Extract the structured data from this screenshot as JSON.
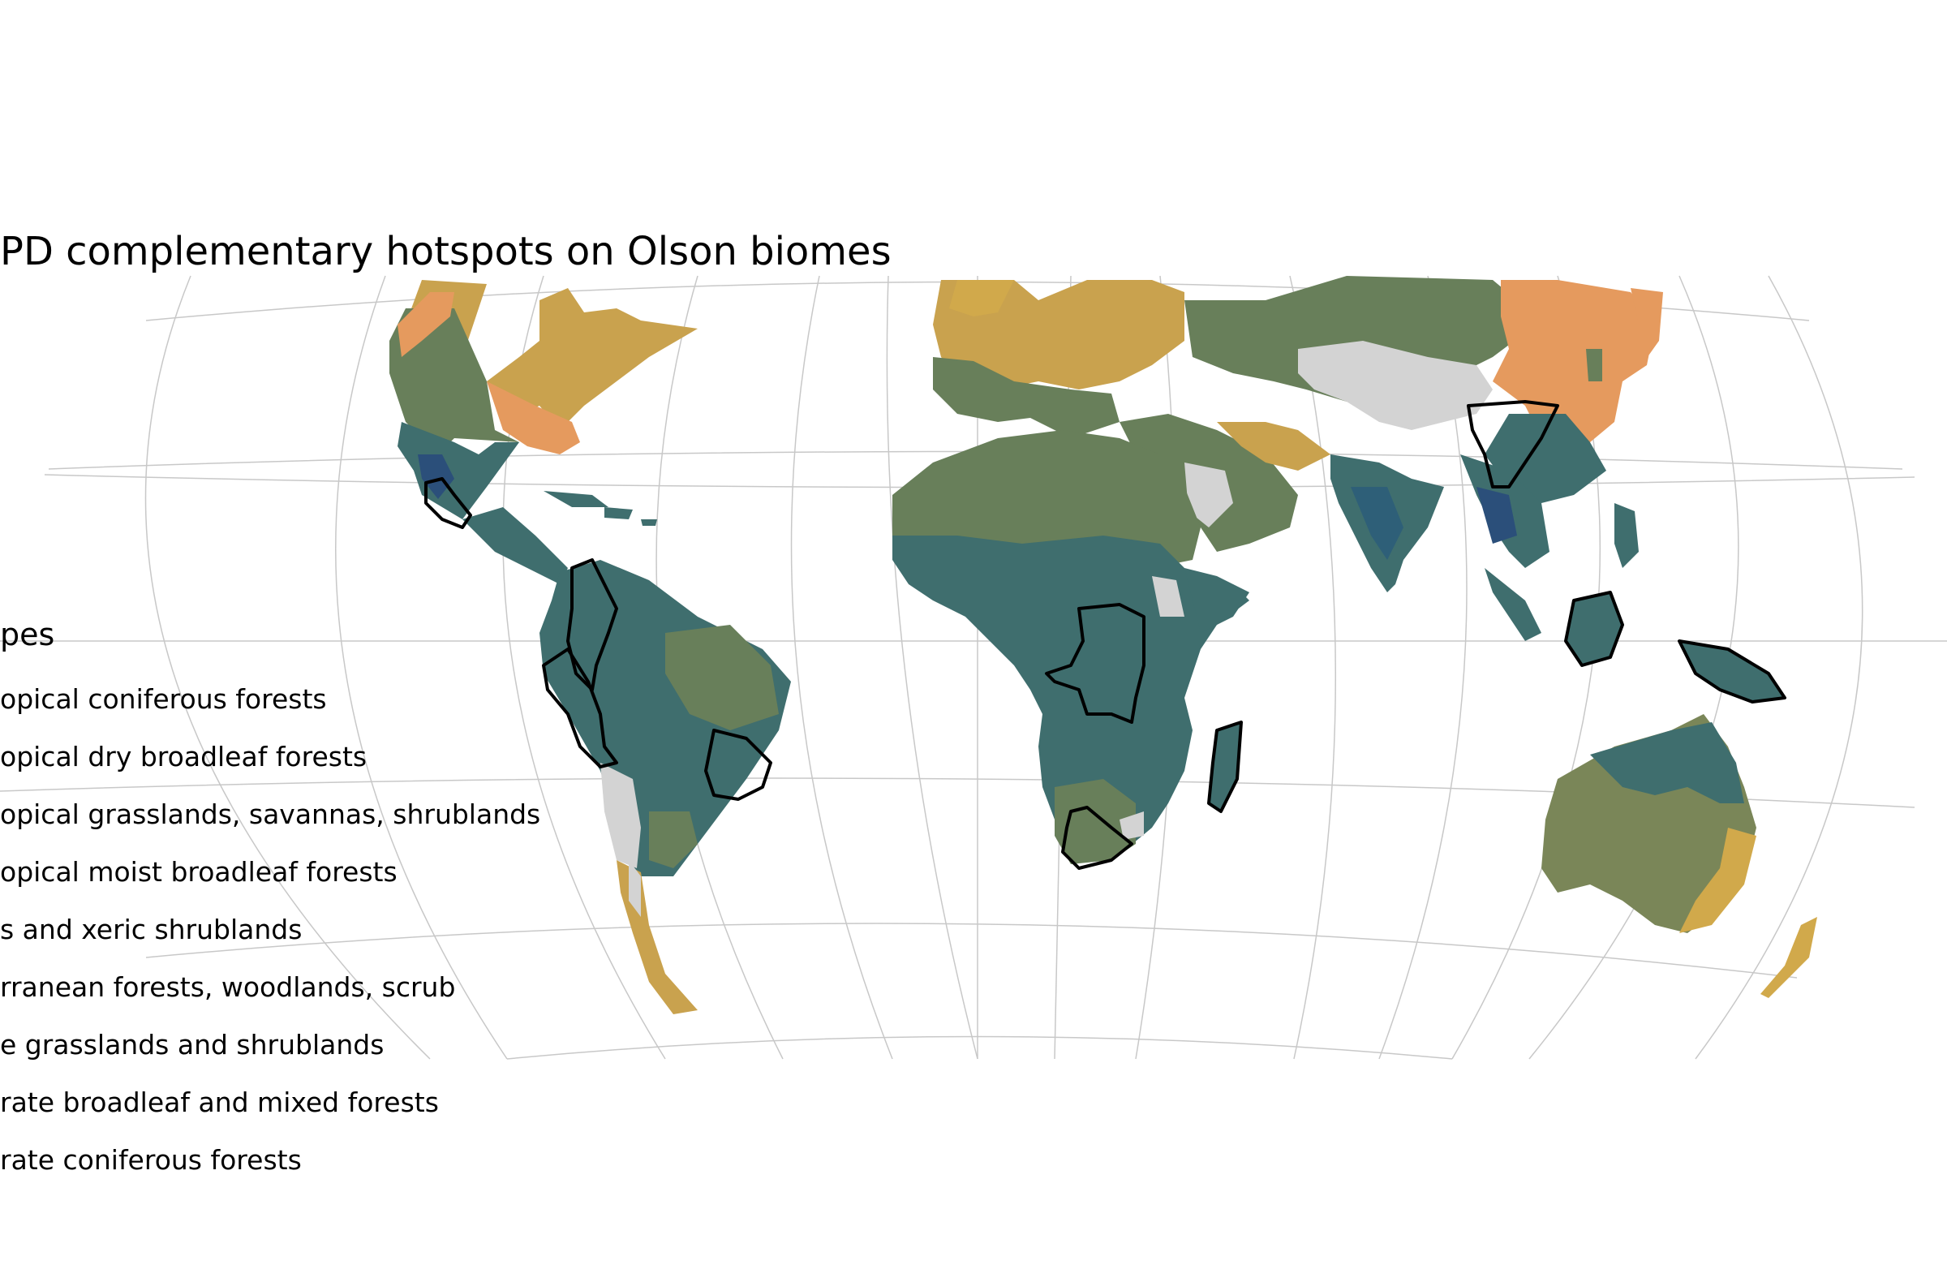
{
  "map": {
    "title": "PD complementary hotspots on Olson biomes",
    "colors": {
      "tropical_moist": "#3f6e6e",
      "tropical_dry": "#2e5f78",
      "coniferous_tropical": "#2b4f7a",
      "savanna_green": "#687f5a",
      "desert_olive": "#7a8658",
      "temperate_broadleaf": "#c9a24e",
      "temperate_conifer": "#e59a5e",
      "mediterranean": "#d1a94b",
      "rock_ice": "#d3d3d3",
      "hotspot_outline": "#000000",
      "graticule": "#c8c8c8"
    }
  },
  "legend": {
    "title": "pes",
    "items": [
      "opical coniferous forests",
      "opical dry broadleaf forests",
      "opical grasslands, savannas, shrublands",
      "opical moist broadleaf forests",
      "s and xeric shrublands",
      "rranean forests, woodlands, scrub",
      "e grasslands and shrublands",
      "rate broadleaf and mixed forests",
      "rate coniferous forests"
    ]
  }
}
